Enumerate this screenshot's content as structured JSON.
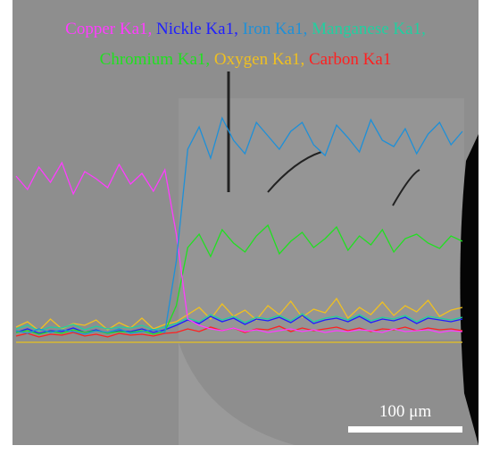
{
  "chart_data": {
    "type": "line",
    "ylim": [
      0,
      250
    ],
    "legend_separator": ",",
    "scale_bar": "100 μm",
    "series": [
      {
        "name": "Copper Ka1",
        "color": "#ff3cff",
        "values": [
          185,
          170,
          195,
          178,
          200,
          165,
          190,
          182,
          172,
          198,
          176,
          188,
          168,
          192,
          120,
          25,
          18,
          14,
          12,
          15,
          11,
          13,
          10,
          12,
          14,
          11,
          13,
          10,
          12,
          11,
          13,
          12,
          10,
          14,
          11,
          12,
          13,
          10,
          12,
          11
        ]
      },
      {
        "name": "Nickle Ka1",
        "color": "#1f1fff",
        "values": [
          10,
          14,
          9,
          12,
          11,
          15,
          10,
          13,
          9,
          12,
          11,
          14,
          10,
          13,
          18,
          24,
          20,
          28,
          22,
          26,
          19,
          25,
          23,
          27,
          21,
          29,
          20,
          24,
          26,
          22,
          28,
          21,
          25,
          23,
          27,
          20,
          26,
          24,
          22,
          25
        ]
      },
      {
        "name": "Iron Ka1",
        "color": "#1e90d8",
        "values": [
          12,
          9,
          14,
          10,
          13,
          11,
          8,
          12,
          10,
          14,
          9,
          11,
          13,
          10,
          90,
          215,
          240,
          205,
          250,
          225,
          210,
          245,
          230,
          215,
          235,
          245,
          220,
          208,
          242,
          228,
          212,
          248,
          225,
          218,
          238,
          210,
          232,
          245,
          220,
          235
        ]
      },
      {
        "name": "Manganese Ka1",
        "color": "#20d0a0",
        "values": [
          14,
          18,
          12,
          16,
          15,
          19,
          13,
          17,
          14,
          16,
          15,
          18,
          13,
          16,
          20,
          26,
          22,
          30,
          24,
          28,
          21,
          27,
          25,
          29,
          23,
          31,
          22,
          26,
          28,
          24,
          30,
          23,
          27,
          25,
          29,
          22,
          28,
          26,
          24,
          27
        ]
      },
      {
        "name": "Chromium Ka1",
        "color": "#20e020",
        "values": [
          10,
          12,
          8,
          11,
          9,
          13,
          10,
          12,
          9,
          11,
          10,
          12,
          8,
          11,
          40,
          105,
          120,
          95,
          125,
          110,
          100,
          118,
          130,
          98,
          112,
          122,
          105,
          115,
          128,
          102,
          118,
          108,
          125,
          100,
          115,
          120,
          110,
          104,
          118,
          112
        ]
      },
      {
        "name": "Oxygen Ka1",
        "color": "#f0c020",
        "values": [
          16,
          22,
          12,
          25,
          14,
          20,
          18,
          24,
          13,
          21,
          15,
          26,
          14,
          19,
          22,
          30,
          38,
          25,
          42,
          28,
          35,
          24,
          40,
          30,
          45,
          27,
          36,
          32,
          48,
          26,
          38,
          30,
          44,
          29,
          40,
          33,
          46,
          28,
          35,
          38
        ]
      },
      {
        "name": "Carbon Ka1",
        "color": "#ff2020",
        "values": [
          6,
          9,
          5,
          8,
          7,
          10,
          6,
          8,
          5,
          9,
          7,
          8,
          6,
          9,
          10,
          14,
          11,
          16,
          12,
          15,
          10,
          14,
          13,
          17,
          11,
          15,
          12,
          14,
          16,
          12,
          15,
          11,
          14,
          13,
          16,
          12,
          15,
          13,
          14,
          12
        ]
      }
    ]
  }
}
